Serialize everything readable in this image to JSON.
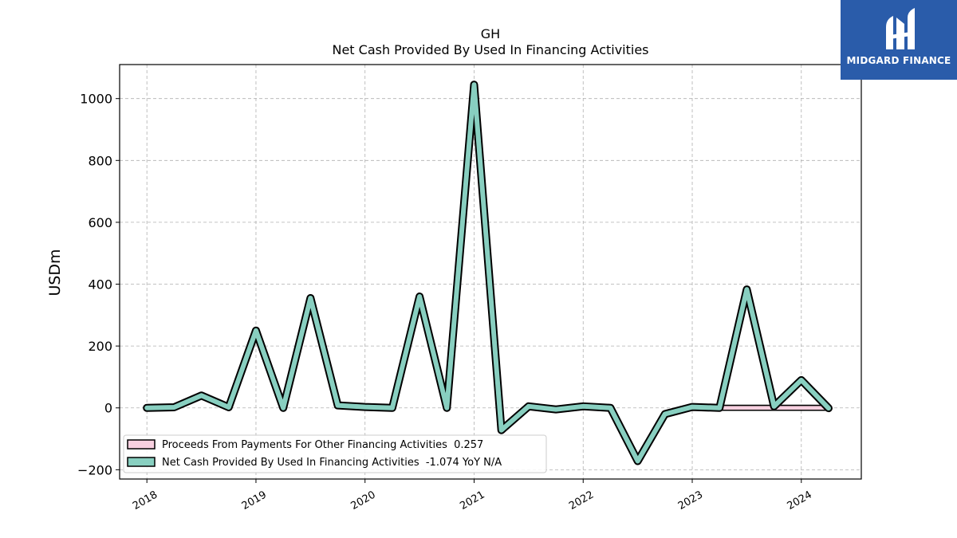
{
  "brand": {
    "name": "MIDGARD FINANCE",
    "bg_color": "#2a5caa"
  },
  "chart_data": {
    "type": "line",
    "title": "GH",
    "subtitle": "Net Cash Provided By Used In Financing Activities",
    "ylabel": "USDm",
    "xlabel": "",
    "ylim": [
      -230,
      1110
    ],
    "xlim": [
      2017.75,
      2024.55
    ],
    "yticks": [
      -200,
      0,
      200,
      400,
      600,
      800,
      1000
    ],
    "xticks": [
      "2018",
      "2019",
      "2020",
      "2021",
      "2022",
      "2023",
      "2024"
    ],
    "grid": true,
    "legend_position": "lower-left",
    "series": [
      {
        "name": "Proceeds From Payments For Other Financing Activities  0.257",
        "kind": "area",
        "color": "#f8d0e0",
        "points": [
          [
            2023.0,
            0.5
          ],
          [
            2023.25,
            0.5
          ],
          [
            2023.5,
            0.5
          ],
          [
            2023.75,
            0.5
          ],
          [
            2024.0,
            0.5
          ],
          [
            2024.25,
            0.3
          ]
        ]
      },
      {
        "name": "Net Cash Provided By Used In Financing Activities  -1.074 YoY N/A",
        "kind": "line",
        "color": "#88cfc0",
        "points": [
          [
            2018.0,
            0
          ],
          [
            2018.25,
            2
          ],
          [
            2018.5,
            40
          ],
          [
            2018.75,
            2
          ],
          [
            2019.0,
            250
          ],
          [
            2019.25,
            0
          ],
          [
            2019.5,
            355
          ],
          [
            2019.75,
            8
          ],
          [
            2020.0,
            3
          ],
          [
            2020.25,
            0
          ],
          [
            2020.5,
            360
          ],
          [
            2020.75,
            0
          ],
          [
            2021.0,
            1045
          ],
          [
            2021.25,
            -72
          ],
          [
            2021.5,
            5
          ],
          [
            2021.75,
            -5
          ],
          [
            2022.0,
            5
          ],
          [
            2022.25,
            0
          ],
          [
            2022.5,
            -172
          ],
          [
            2022.75,
            -20
          ],
          [
            2023.0,
            3
          ],
          [
            2023.25,
            0
          ],
          [
            2023.5,
            383
          ],
          [
            2023.75,
            5
          ],
          [
            2024.0,
            90
          ],
          [
            2024.25,
            -1
          ]
        ]
      }
    ]
  }
}
